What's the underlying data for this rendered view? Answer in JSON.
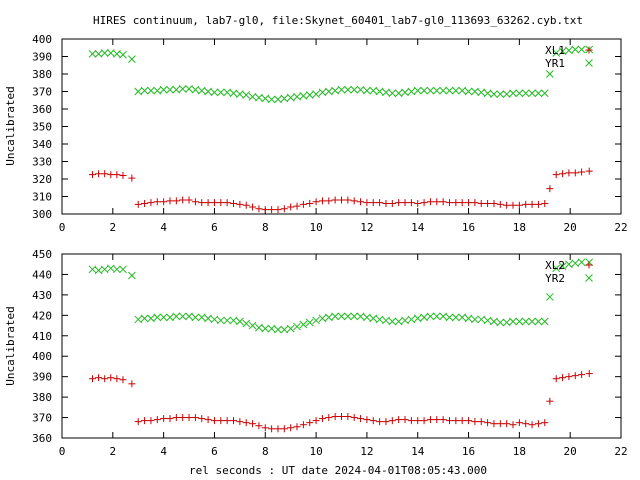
{
  "title": "HIRES continuum, lab7-gl0, file:Skynet_60401_lab7-gl0_113693_63262.cyb.txt",
  "xlabel": "rel seconds : UT date 2024-04-01T08:05:43.000",
  "colors": {
    "red_series": "#cc0000",
    "green_series": "#22bb22",
    "axis": "#000000"
  },
  "chart_data": [
    {
      "type": "scatter",
      "ylabel": "Uncalibrated",
      "xlim": [
        0,
        22
      ],
      "ylim": [
        300,
        400
      ],
      "xticks": [
        "0",
        "2",
        "4",
        "6",
        "8",
        "10",
        "12",
        "14",
        "16",
        "18",
        "20",
        "22"
      ],
      "yticks": [
        "300",
        "310",
        "320",
        "330",
        "340",
        "350",
        "360",
        "370",
        "380",
        "390",
        "400"
      ],
      "legend_position": "top-right",
      "grid": false,
      "series": [
        {
          "name": "XL1",
          "marker": "plus",
          "color": "#cc0000",
          "x": [
            1.2,
            1.44,
            1.68,
            1.92,
            2.16,
            2.4,
            2.75,
            3.0,
            3.25,
            3.5,
            3.75,
            4.0,
            4.25,
            4.5,
            4.75,
            5.0,
            5.25,
            5.5,
            5.75,
            6.0,
            6.25,
            6.5,
            6.75,
            7.0,
            7.25,
            7.5,
            7.75,
            8.0,
            8.25,
            8.5,
            8.75,
            9.0,
            9.25,
            9.5,
            9.75,
            10.0,
            10.25,
            10.5,
            10.75,
            11.0,
            11.25,
            11.5,
            11.75,
            12.0,
            12.25,
            12.5,
            12.75,
            13.0,
            13.25,
            13.5,
            13.75,
            14.0,
            14.25,
            14.5,
            14.75,
            15.0,
            15.25,
            15.5,
            15.75,
            16.0,
            16.25,
            16.5,
            16.75,
            17.0,
            17.25,
            17.5,
            17.75,
            18.0,
            18.25,
            18.5,
            18.75,
            19.0,
            19.2,
            19.45,
            19.7,
            19.95,
            20.2,
            20.45,
            20.75
          ],
          "y": [
            322.5,
            323,
            323,
            322.5,
            322.5,
            322,
            320.5,
            305.5,
            306,
            306.5,
            307,
            307,
            307.5,
            307.5,
            308,
            308,
            307,
            306.5,
            306.5,
            306.5,
            306.5,
            306.5,
            306,
            305.5,
            305,
            304,
            303,
            302.5,
            302.5,
            302.5,
            303,
            304,
            304.5,
            305.5,
            306,
            307,
            307.5,
            307.5,
            308,
            308,
            308,
            307.5,
            307,
            306.5,
            306.5,
            306.5,
            306,
            306,
            306.5,
            306.5,
            306.5,
            306,
            306.5,
            307,
            307,
            307,
            306.5,
            306.5,
            306.5,
            306.5,
            306.5,
            306,
            306,
            306,
            305.5,
            305,
            305,
            305,
            305.5,
            305.5,
            305.5,
            306,
            314.5,
            322.5,
            323,
            323.5,
            323.5,
            324,
            324.5
          ]
        },
        {
          "name": "YR1",
          "marker": "cross",
          "color": "#22bb22",
          "x": [
            1.2,
            1.44,
            1.68,
            1.92,
            2.16,
            2.4,
            2.75,
            3.0,
            3.25,
            3.5,
            3.75,
            4.0,
            4.25,
            4.5,
            4.75,
            5.0,
            5.25,
            5.5,
            5.75,
            6.0,
            6.25,
            6.5,
            6.75,
            7.0,
            7.25,
            7.5,
            7.75,
            8.0,
            8.25,
            8.5,
            8.75,
            9.0,
            9.25,
            9.5,
            9.75,
            10.0,
            10.25,
            10.5,
            10.75,
            11.0,
            11.25,
            11.5,
            11.75,
            12.0,
            12.25,
            12.5,
            12.75,
            13.0,
            13.25,
            13.5,
            13.75,
            14.0,
            14.25,
            14.5,
            14.75,
            15.0,
            15.25,
            15.5,
            15.75,
            16.0,
            16.25,
            16.5,
            16.75,
            17.0,
            17.25,
            17.5,
            17.75,
            18.0,
            18.25,
            18.5,
            18.75,
            19.0,
            19.2,
            19.45,
            19.7,
            19.95,
            20.2,
            20.45,
            20.75
          ],
          "y": [
            391.5,
            391.5,
            392,
            392,
            391.5,
            391,
            388.5,
            370,
            370.5,
            370.5,
            370.5,
            371,
            371,
            371,
            371.5,
            371.5,
            371,
            370.5,
            370,
            369.5,
            369.5,
            369.5,
            369,
            368.5,
            368,
            367,
            366.5,
            366,
            365.5,
            365.5,
            366,
            366.5,
            367,
            367.5,
            368,
            368.5,
            369.5,
            370,
            370.5,
            371,
            371,
            371,
            371,
            370.5,
            370.5,
            370,
            369.5,
            369,
            369,
            369.5,
            370,
            370.5,
            370.5,
            370.5,
            370.5,
            370.5,
            370.5,
            370.5,
            370.5,
            370,
            370,
            369.5,
            369,
            368.5,
            368.5,
            368.5,
            369,
            369,
            369,
            369,
            369,
            369,
            380,
            392,
            393,
            393.5,
            394,
            394,
            394
          ]
        }
      ]
    },
    {
      "type": "scatter",
      "ylabel": "Uncalibrated",
      "xlim": [
        0,
        22
      ],
      "ylim": [
        360,
        450
      ],
      "xticks": [
        "0",
        "2",
        "4",
        "6",
        "8",
        "10",
        "12",
        "14",
        "16",
        "18",
        "20",
        "22"
      ],
      "yticks": [
        "360",
        "370",
        "380",
        "390",
        "400",
        "410",
        "420",
        "430",
        "440",
        "450"
      ],
      "legend_position": "top-right",
      "grid": false,
      "series": [
        {
          "name": "XL2",
          "marker": "plus",
          "color": "#cc0000",
          "x": [
            1.2,
            1.44,
            1.68,
            1.92,
            2.16,
            2.4,
            2.75,
            3.0,
            3.25,
            3.5,
            3.75,
            4.0,
            4.25,
            4.5,
            4.75,
            5.0,
            5.25,
            5.5,
            5.75,
            6.0,
            6.25,
            6.5,
            6.75,
            7.0,
            7.25,
            7.5,
            7.75,
            8.0,
            8.25,
            8.5,
            8.75,
            9.0,
            9.25,
            9.5,
            9.75,
            10.0,
            10.25,
            10.5,
            10.75,
            11.0,
            11.25,
            11.5,
            11.75,
            12.0,
            12.25,
            12.5,
            12.75,
            13.0,
            13.25,
            13.5,
            13.75,
            14.0,
            14.25,
            14.5,
            14.75,
            15.0,
            15.25,
            15.5,
            15.75,
            16.0,
            16.25,
            16.5,
            16.75,
            17.0,
            17.25,
            17.5,
            17.75,
            18.0,
            18.25,
            18.5,
            18.75,
            19.0,
            19.2,
            19.45,
            19.7,
            19.95,
            20.2,
            20.45,
            20.75
          ],
          "y": [
            389,
            389.5,
            389,
            389.5,
            389,
            388.5,
            386.5,
            368,
            368.5,
            368.5,
            369,
            369.5,
            369.5,
            370,
            370,
            370,
            370,
            369.5,
            369,
            368.5,
            368.5,
            368.5,
            368.5,
            368,
            367.5,
            367,
            366,
            365,
            364.5,
            364.5,
            364.5,
            365,
            365.5,
            366.5,
            367.5,
            368.5,
            369.5,
            370,
            370.5,
            370.5,
            370.5,
            370,
            369.5,
            369,
            368.5,
            368,
            368,
            368.5,
            369,
            369,
            368.5,
            368.5,
            368.5,
            369,
            369,
            369,
            368.5,
            368.5,
            368.5,
            368.5,
            368,
            368,
            367.5,
            367,
            367,
            367,
            366.5,
            367.5,
            367,
            366.5,
            367,
            367.5,
            378,
            389,
            389.5,
            390,
            390.5,
            391,
            391.5
          ]
        },
        {
          "name": "YR2",
          "marker": "cross",
          "color": "#22bb22",
          "x": [
            1.2,
            1.44,
            1.68,
            1.92,
            2.16,
            2.4,
            2.75,
            3.0,
            3.25,
            3.5,
            3.75,
            4.0,
            4.25,
            4.5,
            4.75,
            5.0,
            5.25,
            5.5,
            5.75,
            6.0,
            6.25,
            6.5,
            6.75,
            7.0,
            7.25,
            7.5,
            7.75,
            8.0,
            8.25,
            8.5,
            8.75,
            9.0,
            9.25,
            9.5,
            9.75,
            10.0,
            10.25,
            10.5,
            10.75,
            11.0,
            11.25,
            11.5,
            11.75,
            12.0,
            12.25,
            12.5,
            12.75,
            13.0,
            13.25,
            13.5,
            13.75,
            14.0,
            14.25,
            14.5,
            14.75,
            15.0,
            15.25,
            15.5,
            15.75,
            16.0,
            16.25,
            16.5,
            16.75,
            17.0,
            17.25,
            17.5,
            17.75,
            18.0,
            18.25,
            18.5,
            18.75,
            19.0,
            19.2,
            19.45,
            19.7,
            19.95,
            20.2,
            20.45,
            20.75
          ],
          "y": [
            442.5,
            442,
            442.5,
            443,
            442.5,
            442.5,
            439.5,
            418,
            418.5,
            418.5,
            419,
            419,
            419,
            419.5,
            419.5,
            419.5,
            419,
            419,
            418.5,
            418,
            417.5,
            417.5,
            417.5,
            417,
            416,
            415,
            414,
            413.5,
            413.5,
            413,
            413,
            413.5,
            414.5,
            415.5,
            416.5,
            417.5,
            418.5,
            419,
            419.5,
            419.5,
            419.5,
            419.5,
            419.5,
            419,
            418.5,
            418,
            417.5,
            417,
            417,
            417.5,
            418,
            418.5,
            419,
            419.5,
            419.5,
            419.5,
            419,
            419,
            419,
            418.5,
            418,
            418,
            417.5,
            417,
            416.5,
            416.5,
            417,
            417,
            417,
            417,
            417,
            417,
            429,
            443,
            444,
            445,
            445.5,
            446,
            446
          ]
        }
      ]
    }
  ]
}
